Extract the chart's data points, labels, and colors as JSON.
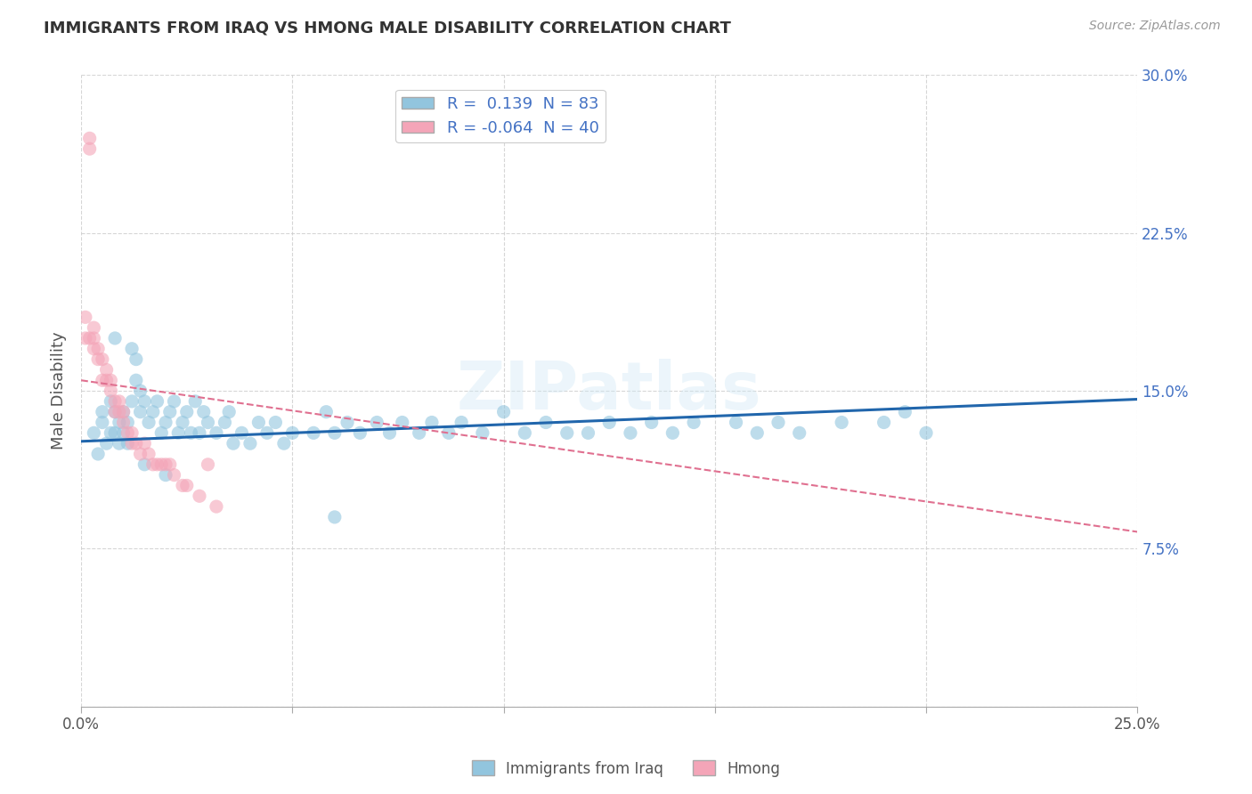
{
  "title": "IMMIGRANTS FROM IRAQ VS HMONG MALE DISABILITY CORRELATION CHART",
  "source_text": "Source: ZipAtlas.com",
  "ylabel": "Male Disability",
  "xlim": [
    0.0,
    0.25
  ],
  "ylim": [
    0.0,
    0.3
  ],
  "watermark": "ZIPatlas",
  "iraq_R": 0.139,
  "iraq_N": 83,
  "hmong_R": -0.064,
  "hmong_N": 40,
  "blue_color": "#92c5de",
  "pink_color": "#f4a5b8",
  "blue_line_color": "#2166ac",
  "pink_line_color": "#e07090",
  "grid_color": "#cccccc",
  "title_color": "#333333",
  "right_axis_color": "#4472c4",
  "background_color": "#ffffff",
  "iraq_scatter_x": [
    0.003,
    0.004,
    0.005,
    0.005,
    0.006,
    0.007,
    0.007,
    0.008,
    0.008,
    0.009,
    0.009,
    0.01,
    0.01,
    0.011,
    0.011,
    0.012,
    0.013,
    0.013,
    0.014,
    0.014,
    0.015,
    0.016,
    0.017,
    0.018,
    0.019,
    0.02,
    0.021,
    0.022,
    0.023,
    0.024,
    0.025,
    0.026,
    0.027,
    0.028,
    0.029,
    0.03,
    0.032,
    0.034,
    0.035,
    0.036,
    0.038,
    0.04,
    0.042,
    0.044,
    0.046,
    0.048,
    0.05,
    0.055,
    0.058,
    0.06,
    0.063,
    0.066,
    0.07,
    0.073,
    0.076,
    0.08,
    0.083,
    0.087,
    0.09,
    0.095,
    0.1,
    0.105,
    0.11,
    0.115,
    0.12,
    0.125,
    0.13,
    0.135,
    0.14,
    0.145,
    0.155,
    0.16,
    0.165,
    0.17,
    0.18,
    0.19,
    0.195,
    0.2,
    0.008,
    0.012,
    0.015,
    0.02,
    0.06
  ],
  "iraq_scatter_y": [
    0.13,
    0.12,
    0.135,
    0.14,
    0.125,
    0.13,
    0.145,
    0.13,
    0.14,
    0.125,
    0.135,
    0.13,
    0.14,
    0.125,
    0.135,
    0.145,
    0.155,
    0.165,
    0.14,
    0.15,
    0.145,
    0.135,
    0.14,
    0.145,
    0.13,
    0.135,
    0.14,
    0.145,
    0.13,
    0.135,
    0.14,
    0.13,
    0.145,
    0.13,
    0.14,
    0.135,
    0.13,
    0.135,
    0.14,
    0.125,
    0.13,
    0.125,
    0.135,
    0.13,
    0.135,
    0.125,
    0.13,
    0.13,
    0.14,
    0.13,
    0.135,
    0.13,
    0.135,
    0.13,
    0.135,
    0.13,
    0.135,
    0.13,
    0.135,
    0.13,
    0.14,
    0.13,
    0.135,
    0.13,
    0.13,
    0.135,
    0.13,
    0.135,
    0.13,
    0.135,
    0.135,
    0.13,
    0.135,
    0.13,
    0.135,
    0.135,
    0.14,
    0.13,
    0.175,
    0.17,
    0.115,
    0.11,
    0.09
  ],
  "hmong_scatter_x": [
    0.001,
    0.001,
    0.002,
    0.002,
    0.002,
    0.003,
    0.003,
    0.003,
    0.004,
    0.004,
    0.005,
    0.005,
    0.006,
    0.006,
    0.007,
    0.007,
    0.008,
    0.008,
    0.009,
    0.009,
    0.01,
    0.01,
    0.011,
    0.012,
    0.012,
    0.013,
    0.014,
    0.015,
    0.016,
    0.017,
    0.018,
    0.019,
    0.02,
    0.021,
    0.022,
    0.024,
    0.025,
    0.028,
    0.03,
    0.032
  ],
  "hmong_scatter_y": [
    0.175,
    0.185,
    0.265,
    0.27,
    0.175,
    0.17,
    0.175,
    0.18,
    0.165,
    0.17,
    0.155,
    0.165,
    0.155,
    0.16,
    0.15,
    0.155,
    0.14,
    0.145,
    0.14,
    0.145,
    0.135,
    0.14,
    0.13,
    0.13,
    0.125,
    0.125,
    0.12,
    0.125,
    0.12,
    0.115,
    0.115,
    0.115,
    0.115,
    0.115,
    0.11,
    0.105,
    0.105,
    0.1,
    0.115,
    0.095
  ],
  "iraq_trendline_x": [
    0.0,
    0.25
  ],
  "iraq_trendline_y": [
    0.126,
    0.146
  ],
  "hmong_trendline_x": [
    0.0,
    0.25
  ],
  "hmong_trendline_y": [
    0.155,
    0.083
  ]
}
